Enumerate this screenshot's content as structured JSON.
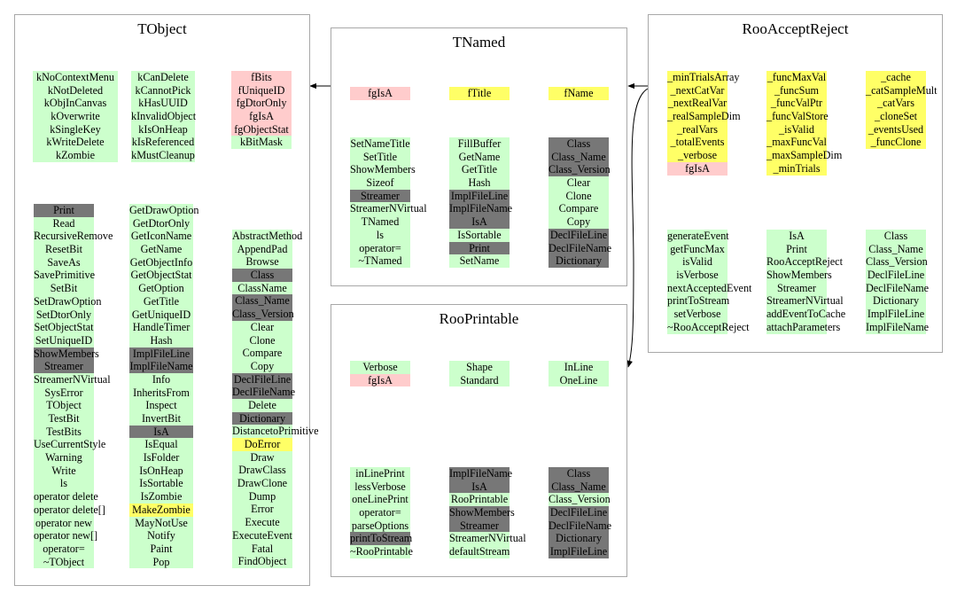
{
  "colors": {
    "member": "#ccffcc",
    "inherited": "#777777",
    "owned": "#ffff66",
    "protected": "#ffcccc",
    "border": "#a8a8a8",
    "arrow": "#000000"
  },
  "classes": {
    "tobject": {
      "title": "TObject",
      "data_columns": [
        [
          {
            "t": "kNoContextMenu",
            "c": "g"
          },
          {
            "t": "kNotDeleted",
            "c": "g"
          },
          {
            "t": "kObjInCanvas",
            "c": "g"
          },
          {
            "t": "kOverwrite",
            "c": "g"
          },
          {
            "t": "kSingleKey",
            "c": "g"
          },
          {
            "t": "kWriteDelete",
            "c": "g"
          },
          {
            "t": "kZombie",
            "c": "g"
          }
        ],
        [
          {
            "t": "kCanDelete",
            "c": "g"
          },
          {
            "t": "kCannotPick",
            "c": "g"
          },
          {
            "t": "kHasUUID",
            "c": "g"
          },
          {
            "t": "kInvalidObject",
            "c": "g"
          },
          {
            "t": "kIsOnHeap",
            "c": "g"
          },
          {
            "t": "kIsReferenced",
            "c": "g"
          },
          {
            "t": "kMustCleanup",
            "c": "g"
          }
        ],
        [
          {
            "t": "fBits",
            "c": "p"
          },
          {
            "t": "fUniqueID",
            "c": "p"
          },
          {
            "t": "fgDtorOnly",
            "c": "p"
          },
          {
            "t": "fgIsA",
            "c": "p"
          },
          {
            "t": "fgObjectStat",
            "c": "p"
          },
          {
            "t": "kBitMask",
            "c": "g"
          }
        ]
      ],
      "method_columns": [
        [
          {
            "t": "Print",
            "c": "d"
          },
          {
            "t": "Read",
            "c": "g"
          },
          {
            "t": "RecursiveRemove",
            "c": "g"
          },
          {
            "t": "ResetBit",
            "c": "g"
          },
          {
            "t": "SaveAs",
            "c": "g"
          },
          {
            "t": "SavePrimitive",
            "c": "g"
          },
          {
            "t": "SetBit",
            "c": "g"
          },
          {
            "t": "SetDrawOption",
            "c": "g"
          },
          {
            "t": "SetDtorOnly",
            "c": "g"
          },
          {
            "t": "SetObjectStat",
            "c": "g"
          },
          {
            "t": "SetUniqueID",
            "c": "g"
          },
          {
            "t": "ShowMembers",
            "c": "d"
          },
          {
            "t": "Streamer",
            "c": "d"
          },
          {
            "t": "StreamerNVirtual",
            "c": "g"
          },
          {
            "t": "SysError",
            "c": "g"
          },
          {
            "t": "TObject",
            "c": "g"
          },
          {
            "t": "TestBit",
            "c": "g"
          },
          {
            "t": "TestBits",
            "c": "g"
          },
          {
            "t": "UseCurrentStyle",
            "c": "g"
          },
          {
            "t": "Warning",
            "c": "g"
          },
          {
            "t": "Write",
            "c": "g"
          },
          {
            "t": "ls",
            "c": "g"
          },
          {
            "t": "operator delete",
            "c": "g"
          },
          {
            "t": "operator delete[]",
            "c": "g"
          },
          {
            "t": "operator new",
            "c": "g"
          },
          {
            "t": "operator new[]",
            "c": "g"
          },
          {
            "t": "operator=",
            "c": "g"
          },
          {
            "t": "~TObject",
            "c": "g"
          }
        ],
        [
          {
            "t": "GetDrawOption",
            "c": "g"
          },
          {
            "t": "GetDtorOnly",
            "c": "g"
          },
          {
            "t": "GetIconName",
            "c": "g"
          },
          {
            "t": "GetName",
            "c": "g"
          },
          {
            "t": "GetObjectInfo",
            "c": "g"
          },
          {
            "t": "GetObjectStat",
            "c": "g"
          },
          {
            "t": "GetOption",
            "c": "g"
          },
          {
            "t": "GetTitle",
            "c": "g"
          },
          {
            "t": "GetUniqueID",
            "c": "g"
          },
          {
            "t": "HandleTimer",
            "c": "g"
          },
          {
            "t": "Hash",
            "c": "g"
          },
          {
            "t": "ImplFileLine",
            "c": "d"
          },
          {
            "t": "ImplFileName",
            "c": "d"
          },
          {
            "t": "Info",
            "c": "g"
          },
          {
            "t": "InheritsFrom",
            "c": "g"
          },
          {
            "t": "Inspect",
            "c": "g"
          },
          {
            "t": "InvertBit",
            "c": "g"
          },
          {
            "t": "IsA",
            "c": "d"
          },
          {
            "t": "IsEqual",
            "c": "g"
          },
          {
            "t": "IsFolder",
            "c": "g"
          },
          {
            "t": "IsOnHeap",
            "c": "g"
          },
          {
            "t": "IsSortable",
            "c": "g"
          },
          {
            "t": "IsZombie",
            "c": "g"
          },
          {
            "t": "MakeZombie",
            "c": "y"
          },
          {
            "t": "MayNotUse",
            "c": "g"
          },
          {
            "t": "Notify",
            "c": "g"
          },
          {
            "t": "Paint",
            "c": "g"
          },
          {
            "t": "Pop",
            "c": "g"
          }
        ],
        [
          {
            "t": "AbstractMethod",
            "c": "g"
          },
          {
            "t": "AppendPad",
            "c": "g"
          },
          {
            "t": "Browse",
            "c": "g"
          },
          {
            "t": "Class",
            "c": "d"
          },
          {
            "t": "ClassName",
            "c": "g"
          },
          {
            "t": "Class_Name",
            "c": "d"
          },
          {
            "t": "Class_Version",
            "c": "d"
          },
          {
            "t": "Clear",
            "c": "g"
          },
          {
            "t": "Clone",
            "c": "g"
          },
          {
            "t": "Compare",
            "c": "g"
          },
          {
            "t": "Copy",
            "c": "g"
          },
          {
            "t": "DeclFileLine",
            "c": "d"
          },
          {
            "t": "DeclFileName",
            "c": "d"
          },
          {
            "t": "Delete",
            "c": "g"
          },
          {
            "t": "Dictionary",
            "c": "d"
          },
          {
            "t": "DistancetoPrimitive",
            "c": "g"
          },
          {
            "t": "DoError",
            "c": "y"
          },
          {
            "t": "Draw",
            "c": "g"
          },
          {
            "t": "DrawClass",
            "c": "g"
          },
          {
            "t": "DrawClone",
            "c": "g"
          },
          {
            "t": "Dump",
            "c": "g"
          },
          {
            "t": "Error",
            "c": "g"
          },
          {
            "t": "Execute",
            "c": "g"
          },
          {
            "t": "ExecuteEvent",
            "c": "g"
          },
          {
            "t": "Fatal",
            "c": "g"
          },
          {
            "t": "FindObject",
            "c": "g"
          }
        ]
      ]
    },
    "tnamed": {
      "title": "TNamed",
      "data_columns": [
        [
          {
            "t": "fgIsA",
            "c": "p"
          }
        ],
        [
          {
            "t": "fTitle",
            "c": "y"
          }
        ],
        [
          {
            "t": "fName",
            "c": "y"
          }
        ]
      ],
      "method_columns": [
        [
          {
            "t": "SetNameTitle",
            "c": "g"
          },
          {
            "t": "SetTitle",
            "c": "g"
          },
          {
            "t": "ShowMembers",
            "c": "g"
          },
          {
            "t": "Sizeof",
            "c": "g"
          },
          {
            "t": "Streamer",
            "c": "d"
          },
          {
            "t": "StreamerNVirtual",
            "c": "g"
          },
          {
            "t": "TNamed",
            "c": "g"
          },
          {
            "t": "ls",
            "c": "g"
          },
          {
            "t": "operator=",
            "c": "g"
          },
          {
            "t": "~TNamed",
            "c": "g"
          }
        ],
        [
          {
            "t": "FillBuffer",
            "c": "g"
          },
          {
            "t": "GetName",
            "c": "g"
          },
          {
            "t": "GetTitle",
            "c": "g"
          },
          {
            "t": "Hash",
            "c": "g"
          },
          {
            "t": "ImplFileLine",
            "c": "d"
          },
          {
            "t": "ImplFileName",
            "c": "d"
          },
          {
            "t": "IsA",
            "c": "d"
          },
          {
            "t": "IsSortable",
            "c": "g"
          },
          {
            "t": "Print",
            "c": "d"
          },
          {
            "t": "SetName",
            "c": "g"
          }
        ],
        [
          {
            "t": "Class",
            "c": "d"
          },
          {
            "t": "Class_Name",
            "c": "d"
          },
          {
            "t": "Class_Version",
            "c": "d"
          },
          {
            "t": "Clear",
            "c": "g"
          },
          {
            "t": "Clone",
            "c": "g"
          },
          {
            "t": "Compare",
            "c": "g"
          },
          {
            "t": "Copy",
            "c": "g"
          },
          {
            "t": "DeclFileLine",
            "c": "d"
          },
          {
            "t": "DeclFileName",
            "c": "d"
          },
          {
            "t": "Dictionary",
            "c": "d"
          }
        ]
      ]
    },
    "rooprintable": {
      "title": "RooPrintable",
      "data_columns": [
        [
          {
            "t": "Verbose",
            "c": "g"
          },
          {
            "t": "fgIsA",
            "c": "p"
          }
        ],
        [
          {
            "t": "Shape",
            "c": "g"
          },
          {
            "t": "Standard",
            "c": "g"
          }
        ],
        [
          {
            "t": "InLine",
            "c": "g"
          },
          {
            "t": "OneLine",
            "c": "g"
          }
        ]
      ],
      "method_columns": [
        [
          {
            "t": "inLinePrint",
            "c": "g"
          },
          {
            "t": "lessVerbose",
            "c": "g"
          },
          {
            "t": "oneLinePrint",
            "c": "g"
          },
          {
            "t": "operator=",
            "c": "g"
          },
          {
            "t": "parseOptions",
            "c": "g"
          },
          {
            "t": "printToStream",
            "c": "d"
          },
          {
            "t": "~RooPrintable",
            "c": "g"
          }
        ],
        [
          {
            "t": "ImplFileName",
            "c": "d"
          },
          {
            "t": "IsA",
            "c": "d"
          },
          {
            "t": "RooPrintable",
            "c": "g"
          },
          {
            "t": "ShowMembers",
            "c": "d"
          },
          {
            "t": "Streamer",
            "c": "d"
          },
          {
            "t": "StreamerNVirtual",
            "c": "g"
          },
          {
            "t": "defaultStream",
            "c": "g"
          }
        ],
        [
          {
            "t": "Class",
            "c": "d"
          },
          {
            "t": "Class_Name",
            "c": "d"
          },
          {
            "t": "Class_Version",
            "c": "g"
          },
          {
            "t": "DeclFileLine",
            "c": "d"
          },
          {
            "t": "DeclFileName",
            "c": "d"
          },
          {
            "t": "Dictionary",
            "c": "d"
          },
          {
            "t": "ImplFileLine",
            "c": "d"
          }
        ]
      ]
    },
    "rooacceptreject": {
      "title": "RooAcceptReject",
      "data_columns": [
        [
          {
            "t": "_minTrialsArray",
            "c": "y"
          },
          {
            "t": "_nextCatVar",
            "c": "y"
          },
          {
            "t": "_nextRealVar",
            "c": "y"
          },
          {
            "t": "_realSampleDim",
            "c": "y"
          },
          {
            "t": "_realVars",
            "c": "y"
          },
          {
            "t": "_totalEvents",
            "c": "y"
          },
          {
            "t": "_verbose",
            "c": "y"
          },
          {
            "t": "fgIsA",
            "c": "p"
          }
        ],
        [
          {
            "t": "_funcMaxVal",
            "c": "y"
          },
          {
            "t": "_funcSum",
            "c": "y"
          },
          {
            "t": "_funcValPtr",
            "c": "y"
          },
          {
            "t": "_funcValStore",
            "c": "y"
          },
          {
            "t": "_isValid",
            "c": "y"
          },
          {
            "t": "_maxFuncVal",
            "c": "y"
          },
          {
            "t": "_maxSampleDim",
            "c": "y"
          },
          {
            "t": "_minTrials",
            "c": "y"
          }
        ],
        [
          {
            "t": "_cache",
            "c": "y"
          },
          {
            "t": "_catSampleMult",
            "c": "y"
          },
          {
            "t": "_catVars",
            "c": "y"
          },
          {
            "t": "_cloneSet",
            "c": "y"
          },
          {
            "t": "_eventsUsed",
            "c": "y"
          },
          {
            "t": "_funcClone",
            "c": "y"
          }
        ]
      ],
      "method_columns": [
        [
          {
            "t": "generateEvent",
            "c": "g"
          },
          {
            "t": "getFuncMax",
            "c": "g"
          },
          {
            "t": "isValid",
            "c": "g"
          },
          {
            "t": "isVerbose",
            "c": "g"
          },
          {
            "t": "nextAcceptedEvent",
            "c": "g"
          },
          {
            "t": "printToStream",
            "c": "g"
          },
          {
            "t": "setVerbose",
            "c": "g"
          },
          {
            "t": "~RooAcceptReject",
            "c": "g"
          }
        ],
        [
          {
            "t": "IsA",
            "c": "g"
          },
          {
            "t": "Print",
            "c": "g"
          },
          {
            "t": "RooAcceptReject",
            "c": "g"
          },
          {
            "t": "ShowMembers",
            "c": "g"
          },
          {
            "t": "Streamer",
            "c": "g"
          },
          {
            "t": "StreamerNVirtual",
            "c": "g"
          },
          {
            "t": "addEventToCache",
            "c": "g"
          },
          {
            "t": "attachParameters",
            "c": "g"
          }
        ],
        [
          {
            "t": "Class",
            "c": "g"
          },
          {
            "t": "Class_Name",
            "c": "g"
          },
          {
            "t": "Class_Version",
            "c": "g"
          },
          {
            "t": "DeclFileLine",
            "c": "g"
          },
          {
            "t": "DeclFileName",
            "c": "g"
          },
          {
            "t": "Dictionary",
            "c": "g"
          },
          {
            "t": "ImplFileLine",
            "c": "g"
          },
          {
            "t": "ImplFileName",
            "c": "g"
          }
        ]
      ]
    }
  }
}
